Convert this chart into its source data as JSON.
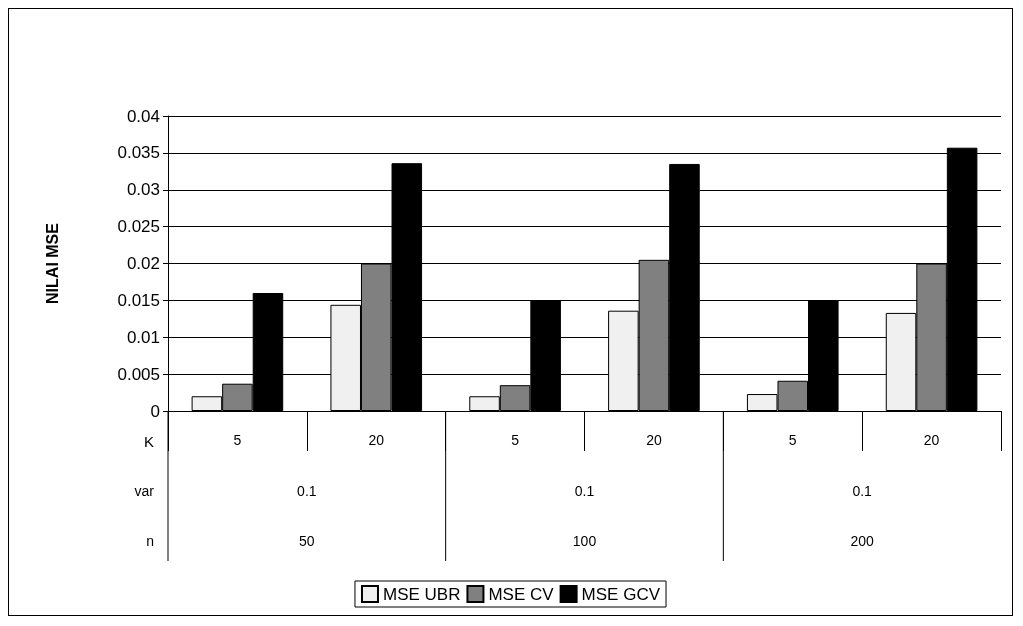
{
  "chart_data": {
    "type": "bar",
    "ylabel": "NILAI MSE",
    "xlabel": "K",
    "categories": [
      "5",
      "20",
      "5",
      "20",
      "5",
      "20"
    ],
    "series": [
      {
        "name": "MSE UBR",
        "color": "#f0f0f0",
        "values": [
          0.002,
          0.0144,
          0.002,
          0.0136,
          0.0023,
          0.0133
        ]
      },
      {
        "name": "MSE CV",
        "color": "#808080",
        "values": [
          0.0037,
          0.02,
          0.0035,
          0.0205,
          0.0041,
          0.02
        ]
      },
      {
        "name": "MSE GCV",
        "color": "#000000",
        "values": [
          0.016,
          0.0336,
          0.015,
          0.0335,
          0.015,
          0.0357
        ]
      }
    ],
    "ylim": [
      0,
      0.04
    ],
    "yticks": [
      0,
      0.005,
      0.01,
      0.015,
      0.02,
      0.025,
      0.03,
      0.035,
      0.04
    ],
    "grid": "y",
    "legend": "bottom",
    "annotations": [
      "var",
      "n",
      "0.1",
      "0.1",
      "0.1",
      "50",
      "100",
      "200"
    ]
  }
}
